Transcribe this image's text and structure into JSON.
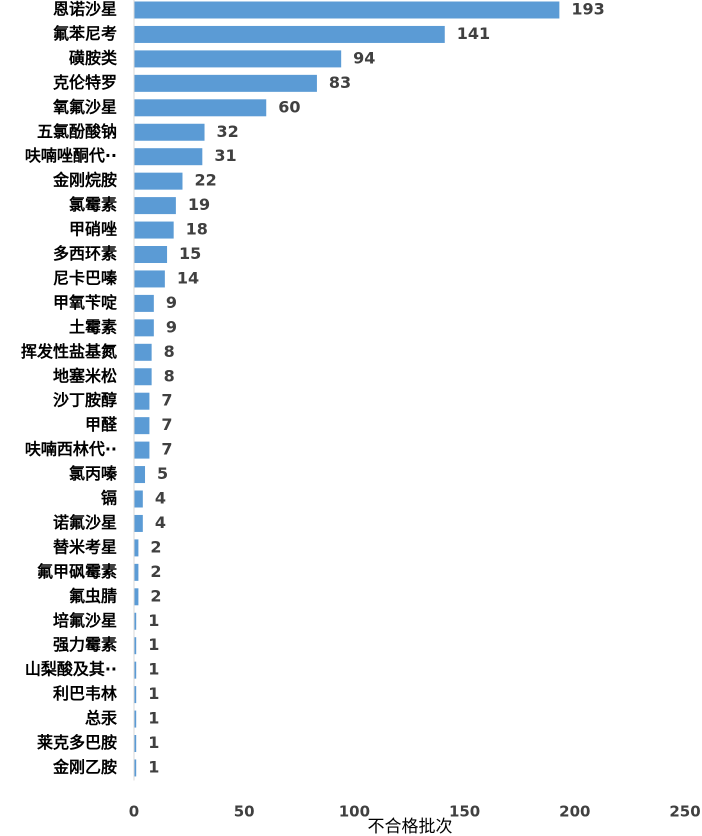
{
  "chart_data": {
    "type": "bar",
    "orientation": "horizontal",
    "title": "",
    "xlabel": "不合格批次",
    "ylabel": "",
    "xlim": [
      0,
      250
    ],
    "xticks": [
      "0",
      "50",
      "100",
      "150",
      "200",
      "250"
    ],
    "grid": false,
    "legend": "none",
    "bar_color": "#5B9BD5",
    "categories": [
      "恩诺沙星",
      "氟苯尼考",
      "磺胺类",
      "克伦特罗",
      "氧氟沙星",
      "五氯酚酸钠",
      "呋喃唑酮代··",
      "金刚烷胺",
      "氯霉素",
      "甲硝唑",
      "多西环素",
      "尼卡巴嗪",
      "甲氧苄啶",
      "土霉素",
      "挥发性盐基氮",
      "地塞米松",
      "沙丁胺醇",
      "甲醛",
      "呋喃西林代··",
      "氯丙嗪",
      "镉",
      "诺氟沙星",
      "替米考星",
      "氟甲砜霉素",
      "氟虫腈",
      "培氟沙星",
      "强力霉素",
      "山梨酸及其··",
      "利巴韦林",
      "总汞",
      "莱克多巴胺",
      "金刚乙胺"
    ],
    "values": [
      193,
      141,
      94,
      83,
      60,
      32,
      31,
      22,
      19,
      18,
      15,
      14,
      9,
      9,
      8,
      8,
      7,
      7,
      7,
      5,
      4,
      4,
      2,
      2,
      2,
      1,
      1,
      1,
      1,
      1,
      1,
      1
    ]
  }
}
